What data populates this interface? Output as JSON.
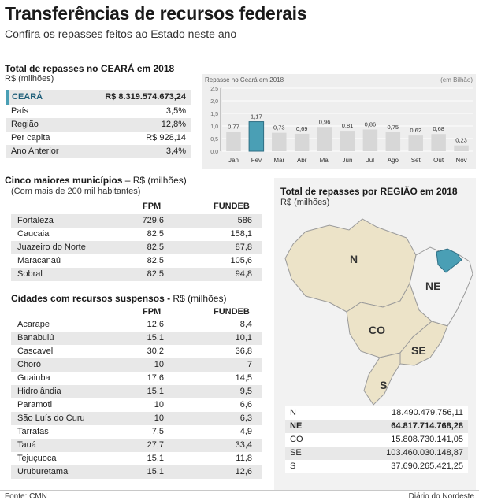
{
  "header": {
    "title": "Transferências de recursos federais",
    "subtitle": "Confira os repasses feitos ao Estado neste ano"
  },
  "ceara": {
    "heading": "Total de repasses no CEARÁ em 2018",
    "unit": "R$ (milhões)",
    "rows": [
      {
        "label": "CEARÁ",
        "value": "R$ 8.319.574.673,24"
      },
      {
        "label": "País",
        "value": "3,5%"
      },
      {
        "label": "Região",
        "value": "12,8%"
      },
      {
        "label": "Per capita",
        "value": "R$ 928,14"
      },
      {
        "label": "Ano Anterior",
        "value": "3,4%"
      }
    ]
  },
  "chart_data": {
    "type": "bar",
    "title": "Repasse no Ceará em 2018",
    "unit_note": "(em Bilhão)",
    "categories": [
      "Jan",
      "Fev",
      "Mar",
      "Abr",
      "Mai",
      "Jun",
      "Jul",
      "Ago",
      "Set",
      "Out",
      "Nov"
    ],
    "values": [
      0.77,
      1.17,
      0.73,
      0.69,
      0.96,
      0.81,
      0.86,
      0.75,
      0.62,
      0.68,
      0.23
    ],
    "value_labels": [
      "0,77",
      "1,17",
      "0,73",
      "0,69",
      "0,96",
      "0,81",
      "0,86",
      "0,75",
      "0,62",
      "0,68",
      "0,23"
    ],
    "y_ticks": [
      "0,0",
      "0,5",
      "1,0",
      "1,5",
      "2,0",
      "2,5"
    ],
    "ylim": [
      0,
      2.5
    ],
    "highlight": "Fev",
    "bar_color": "#d7d7d7",
    "highlight_color": "#4a9fb5",
    "grid": true
  },
  "municipios": {
    "heading": "Cinco maiores municípios",
    "unit": "– R$ (milhões)",
    "note": "(Com mais de 200 mil habitantes)",
    "cols": [
      "FPM",
      "FUNDEB"
    ],
    "rows": [
      {
        "name": "Fortaleza",
        "fpm": "729,6",
        "fundeb": "586"
      },
      {
        "name": "Caucaia",
        "fpm": "82,5",
        "fundeb": "158,1"
      },
      {
        "name": "Juazeiro do Norte",
        "fpm": "82,5",
        "fundeb": "87,8"
      },
      {
        "name": "Maracanaú",
        "fpm": "82,5",
        "fundeb": "105,6"
      },
      {
        "name": "Sobral",
        "fpm": "82,5",
        "fundeb": "94,8"
      }
    ]
  },
  "suspensos": {
    "heading": "Cidades com recursos suspensos -",
    "unit": "R$ (milhões)",
    "cols": [
      "FPM",
      "FUNDEB"
    ],
    "rows": [
      {
        "name": "Acarape",
        "fpm": "12,6",
        "fundeb": "8,4"
      },
      {
        "name": "Banabuiú",
        "fpm": "15,1",
        "fundeb": "10,1"
      },
      {
        "name": "Cascavel",
        "fpm": "30,2",
        "fundeb": "36,8"
      },
      {
        "name": "Choró",
        "fpm": "10",
        "fundeb": "7"
      },
      {
        "name": "Guaiuba",
        "fpm": "17,6",
        "fundeb": "14,5"
      },
      {
        "name": "Hidrolândia",
        "fpm": "15,1",
        "fundeb": "9,5"
      },
      {
        "name": "Paramoti",
        "fpm": "10",
        "fundeb": "6,6"
      },
      {
        "name": "São Luís do Curu",
        "fpm": "10",
        "fundeb": "6,3"
      },
      {
        "name": "Tarrafas",
        "fpm": "7,5",
        "fundeb": "4,9"
      },
      {
        "name": "Tauá",
        "fpm": "27,7",
        "fundeb": "33,4"
      },
      {
        "name": "Tejuçuoca",
        "fpm": "15,1",
        "fundeb": "11,8"
      },
      {
        "name": "Uruburetama",
        "fpm": "15,1",
        "fundeb": "12,6"
      }
    ]
  },
  "regiao": {
    "heading": "Total de repasses por REGIÃO em 2018",
    "unit": "R$ (milhões)",
    "map_labels": [
      "N",
      "NE",
      "CO",
      "SE",
      "S"
    ],
    "map_colors": {
      "region": "#ece3c8",
      "ne": "#f3f3f3",
      "ceara": "#4a9fb5",
      "outline": "#9a9a9a"
    },
    "rows": [
      {
        "label": "N",
        "value": "18.490.479.756,11"
      },
      {
        "label": "NE",
        "value": "64.817.714.768,28"
      },
      {
        "label": "CO",
        "value": "15.808.730.141,05"
      },
      {
        "label": "SE",
        "value": "103.460.030.148,87"
      },
      {
        "label": "S",
        "value": "37.690.265.421,25"
      }
    ]
  },
  "footer": {
    "source": "Fonte: CMN",
    "credit": "Diário do Nordeste"
  }
}
